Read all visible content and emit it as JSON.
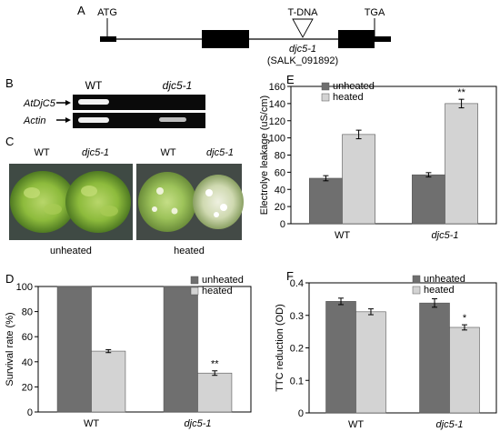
{
  "panels": {
    "A": {
      "label": "A",
      "start_codon": "ATG",
      "stop_codon": "TGA",
      "insertion": "T-DNA",
      "mutant": "djc5-1",
      "line_id": "(SALK_091892)"
    },
    "B": {
      "label": "B",
      "col_wt": "WT",
      "col_mutant": "djc5-1",
      "row_gene": "AtDjC5",
      "row_control": "Actin",
      "band_intensity": {
        "AtDjC5": {
          "WT": 1.0,
          "djc5-1": 0.0
        },
        "Actin": {
          "WT": 1.0,
          "djc5-1": 0.7
        }
      }
    },
    "C": {
      "label": "C",
      "left": {
        "wt": "WT",
        "mutant": "djc5-1",
        "caption": "unheated"
      },
      "right": {
        "wt": "WT",
        "mutant": "djc5-1",
        "caption": "heated"
      }
    }
  },
  "chart_data": [
    {
      "id": "D",
      "label": "D",
      "type": "bar",
      "categories": [
        "WT",
        "djc5-1"
      ],
      "series": [
        {
          "name": "unheated",
          "values": [
            100,
            100
          ],
          "errors": [
            0,
            0
          ],
          "color": "#6f6f6f"
        },
        {
          "name": "heated",
          "values": [
            48.5,
            31
          ],
          "errors": [
            1.2,
            1.8
          ],
          "color": "#d3d3d3"
        }
      ],
      "ylabel": "Survival rate (%)",
      "ylim": [
        0,
        100
      ],
      "yticks": [
        0,
        20,
        40,
        60,
        80,
        100
      ],
      "tick_labels": [
        "0",
        "20",
        "40",
        "60",
        "80",
        "100"
      ],
      "annotations": [
        {
          "category": 1,
          "series": 1,
          "text": "**"
        }
      ],
      "legend": "top-right"
    },
    {
      "id": "E",
      "label": "E",
      "type": "bar",
      "categories": [
        "WT",
        "djc5-1"
      ],
      "series": [
        {
          "name": "unheated",
          "values": [
            53,
            57
          ],
          "errors": [
            3,
            2.5
          ],
          "color": "#6f6f6f"
        },
        {
          "name": "heated",
          "values": [
            104,
            140
          ],
          "errors": [
            5,
            5
          ],
          "color": "#d3d3d3"
        }
      ],
      "ylabel": "Electrolye leakage (uS/cm)",
      "ylim": [
        0,
        160
      ],
      "yticks": [
        0,
        20,
        40,
        60,
        80,
        100,
        120,
        140,
        160
      ],
      "tick_labels": [
        "0",
        "20",
        "40",
        "60",
        "80",
        "100",
        "120",
        "140",
        "160"
      ],
      "annotations": [
        {
          "category": 1,
          "series": 1,
          "text": "**"
        }
      ],
      "legend": "top-left"
    },
    {
      "id": "F",
      "label": "F",
      "type": "bar",
      "categories": [
        "WT",
        "djc5-1"
      ],
      "series": [
        {
          "name": "unheated",
          "values": [
            0.343,
            0.338
          ],
          "errors": [
            0.01,
            0.013
          ],
          "color": "#6f6f6f"
        },
        {
          "name": "heated",
          "values": [
            0.311,
            0.263
          ],
          "errors": [
            0.009,
            0.008
          ],
          "color": "#d3d3d3"
        }
      ],
      "ylabel": "TTC reduction (OD)",
      "ylim": [
        0,
        0.4
      ],
      "yticks": [
        0,
        0.1,
        0.2,
        0.3,
        0.4
      ],
      "tick_labels": [
        "0",
        "0.1",
        "0.2",
        "0.3",
        "0.4"
      ],
      "annotations": [
        {
          "category": 1,
          "series": 1,
          "text": "*"
        }
      ],
      "legend": "top-right"
    }
  ]
}
